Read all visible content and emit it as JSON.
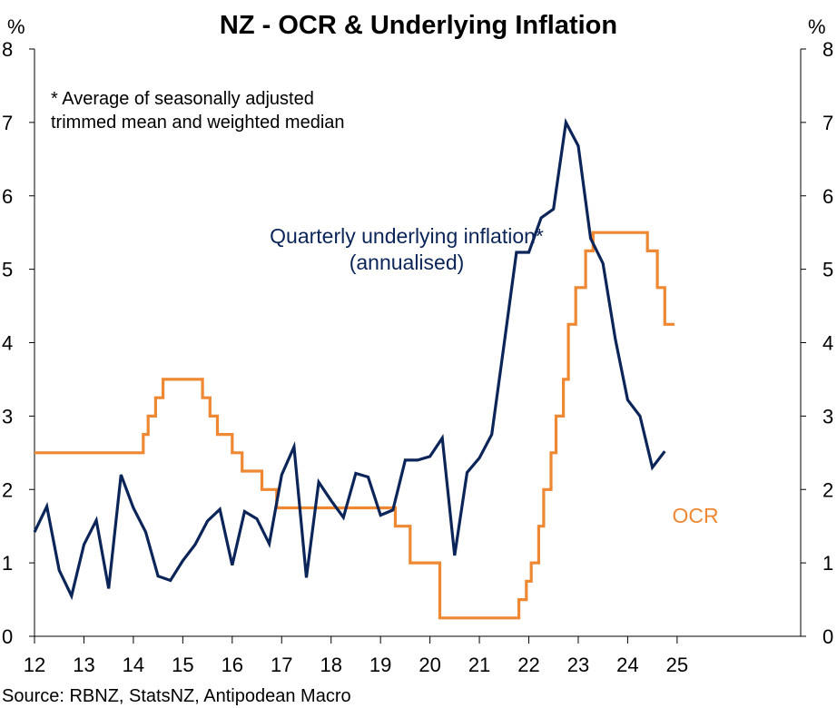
{
  "chart_data": {
    "type": "line",
    "title": "NZ - OCR & Underlying Inflation",
    "ylabel_left": "%",
    "ylabel_right": "%",
    "ylim": [
      0,
      8
    ],
    "yticks": [
      "0",
      "1",
      "2",
      "3",
      "4",
      "5",
      "6",
      "7",
      "8"
    ],
    "xlim": [
      12,
      27.5
    ],
    "xticks": [
      "12",
      "13",
      "14",
      "15",
      "16",
      "17",
      "18",
      "19",
      "20",
      "21",
      "22",
      "23",
      "24",
      "25"
    ],
    "grid": false,
    "footnote": [
      "* Average of seasonally adjusted",
      "trimmed mean and weighted median"
    ],
    "source": "Source: RBNZ, StatsNZ, Antipodean Macro",
    "series": [
      {
        "name": "OCR",
        "label_lines": [
          "OCR"
        ],
        "color": "#EE8833",
        "step": true,
        "x": [
          12,
          14.2,
          14.3,
          14.45,
          14.6,
          15.4,
          15.55,
          15.7,
          16.0,
          16.2,
          16.6,
          16.9,
          19.3,
          19.6,
          20.2,
          21.8,
          21.95,
          22.05,
          22.2,
          22.3,
          22.45,
          22.55,
          22.7,
          22.8,
          22.95,
          23.15,
          23.3,
          23.4,
          23.6,
          24.4,
          24.6,
          24.75
        ],
        "y": [
          2.5,
          2.75,
          3.0,
          3.25,
          3.5,
          3.25,
          3.0,
          2.75,
          2.5,
          2.25,
          2.0,
          1.75,
          1.5,
          1.0,
          0.25,
          0.5,
          0.75,
          1.0,
          1.5,
          2.0,
          2.5,
          3.0,
          3.5,
          4.25,
          4.75,
          5.25,
          5.5,
          5.5,
          5.5,
          5.25,
          4.75,
          4.25
        ],
        "end_x": 24.95
      },
      {
        "name": "Quarterly underlying inflation* (annualised)",
        "label_lines": [
          "Quarterly underlying inflation*",
          "(annualised)"
        ],
        "color": "#0B2559",
        "step": false,
        "x": [
          12.0,
          12.25,
          12.5,
          12.75,
          13.0,
          13.25,
          13.5,
          13.75,
          14.0,
          14.25,
          14.5,
          14.75,
          15.0,
          15.25,
          15.5,
          15.75,
          16.0,
          16.25,
          16.5,
          16.75,
          17.0,
          17.25,
          17.5,
          17.75,
          18.0,
          18.25,
          18.5,
          18.75,
          19.0,
          19.25,
          19.5,
          19.75,
          20.0,
          20.25,
          20.5,
          20.75,
          21.0,
          21.25,
          21.5,
          21.75,
          22.0,
          22.25,
          22.5,
          22.75,
          23.0,
          23.25,
          23.5,
          23.75,
          24.0,
          24.25,
          24.5,
          24.75
        ],
        "y": [
          1.42,
          1.77,
          0.9,
          0.55,
          1.25,
          1.58,
          0.65,
          2.2,
          1.75,
          1.42,
          0.82,
          0.76,
          1.03,
          1.25,
          1.57,
          1.73,
          0.97,
          1.7,
          1.6,
          1.26,
          2.2,
          2.58,
          0.8,
          2.1,
          1.85,
          1.62,
          2.22,
          2.17,
          1.65,
          1.72,
          2.4,
          2.4,
          2.45,
          2.7,
          1.1,
          2.23,
          2.43,
          2.75,
          3.98,
          5.23,
          5.23,
          5.7,
          5.82,
          7.0,
          6.68,
          5.42,
          5.08,
          4.05,
          3.22,
          3.0,
          2.3,
          2.52
        ]
      }
    ]
  }
}
